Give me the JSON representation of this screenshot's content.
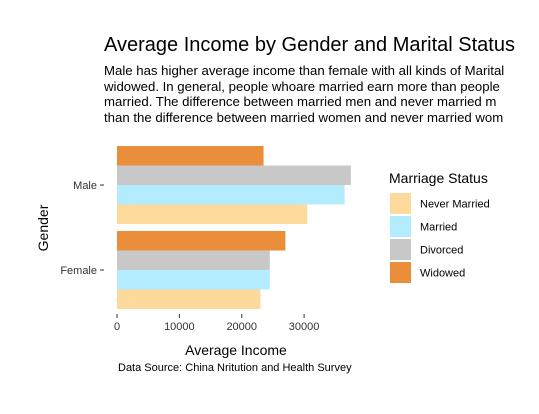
{
  "chart_data": {
    "type": "bar",
    "orientation": "horizontal",
    "title": "Average Income by Gender and Marital Status",
    "subtitle": [
      "Male has higher average income than female with all kinds of Marital",
      "widowed. In general, people whoare married earn more than people",
      "married. The difference between married men and never married m",
      "than the difference between married women and never married wom"
    ],
    "xlabel": "Average Income",
    "ylabel": "Gender",
    "xlim": [
      0,
      38000
    ],
    "xticks": [
      0,
      10000,
      20000,
      30000
    ],
    "categories": [
      "Male",
      "Female"
    ],
    "series": [
      {
        "name": "Never Married",
        "color": "#FDD99B",
        "values": [
          30500,
          23000
        ]
      },
      {
        "name": "Married",
        "color": "#B3EBFF",
        "values": [
          36500,
          24500
        ]
      },
      {
        "name": "Divorced",
        "color": "#C8C8C8",
        "values": [
          37500,
          24500
        ]
      },
      {
        "name": "Widowed",
        "color": "#EB8E3C",
        "values": [
          23500,
          27000
        ]
      }
    ],
    "legend_title": "Marriage Status",
    "legend_position": "right",
    "grid": false,
    "caption": "Data Source: China Nritution and Health Survey"
  }
}
